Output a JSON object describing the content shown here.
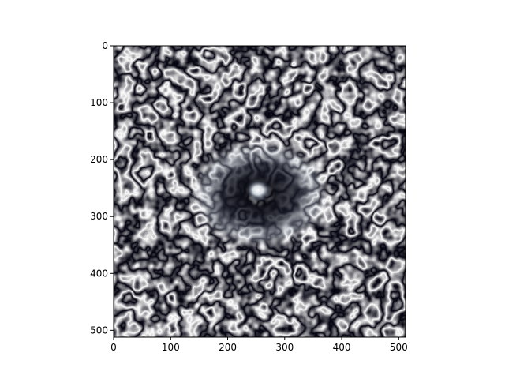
{
  "chart_data": {
    "type": "heatmap",
    "title": "",
    "xlabel": "",
    "ylabel": "",
    "colormap": "bone",
    "image_size": [
      512,
      512
    ],
    "xlim": [
      0,
      512
    ],
    "ylim": [
      512,
      0
    ],
    "x_ticks": [
      0,
      100,
      200,
      300,
      400,
      500
    ],
    "y_ticks": [
      0,
      100,
      200,
      300,
      400,
      500
    ],
    "x_tick_labels": [
      "0",
      "100",
      "200",
      "300",
      "400",
      "500"
    ],
    "y_tick_labels": [
      "0",
      "100",
      "200",
      "300",
      "400",
      "500"
    ],
    "center_feature": {
      "x": 256,
      "y": 256,
      "description_value": "bright ring at center"
    },
    "grid": false,
    "colors": {
      "dark": "#000000",
      "mid": "#5c6b82",
      "light": "#ffffff",
      "axes": "#000000"
    }
  }
}
